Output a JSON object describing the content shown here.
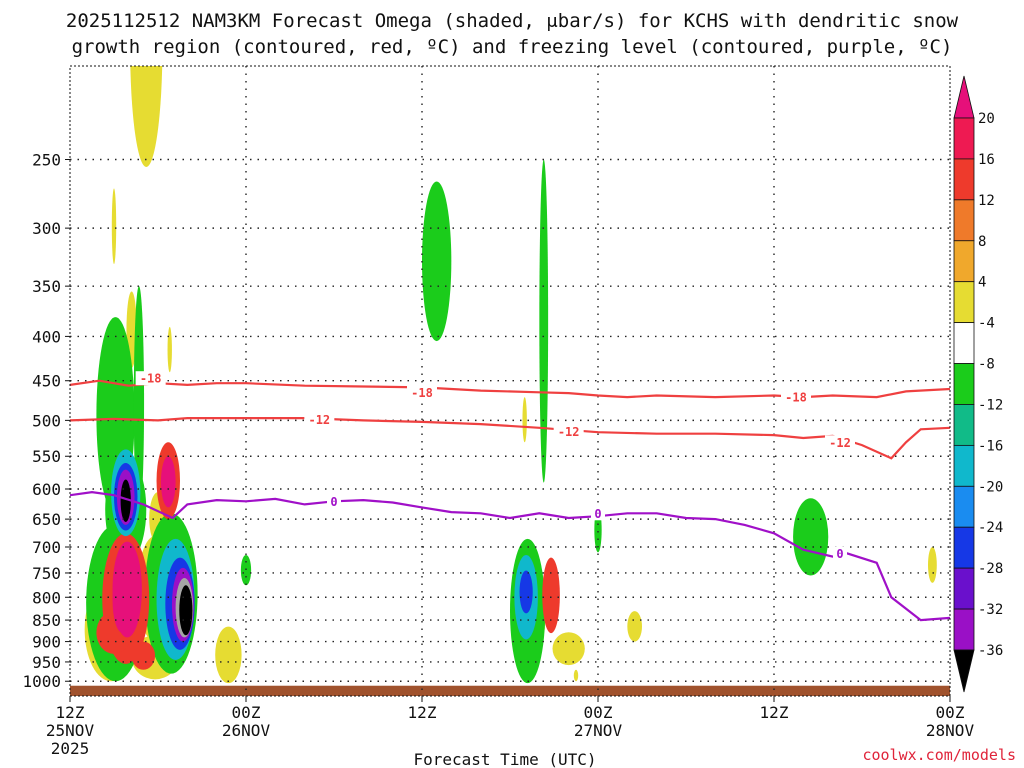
{
  "title_line1": "2025112512 NAM3KM Forecast Omega (shaded, μbar/s) for KCHS with dendritic snow",
  "title_line2": "growth region (contoured, red, ºC) and freezing level (contoured, purple, ºC)",
  "x_axis_title": "Forecast Time (UTC)",
  "credit": "coolwx.com/models",
  "chart_data": {
    "type": "heatmap",
    "xlabel": "Forecast Time (UTC)",
    "ylabel": "",
    "x_range_hours": [
      0,
      60
    ],
    "y_range_hPa": [
      1040,
      195
    ],
    "y_scale": "log-pressure",
    "grid": true,
    "y_ticks": [
      250,
      300,
      350,
      400,
      450,
      500,
      550,
      600,
      650,
      700,
      750,
      800,
      850,
      900,
      950,
      1000
    ],
    "x_ticks": [
      {
        "hour": 0,
        "lines": [
          "12Z",
          "25NOV",
          "2025"
        ]
      },
      {
        "hour": 12,
        "lines": [
          "00Z",
          "26NOV"
        ]
      },
      {
        "hour": 24,
        "lines": [
          "12Z"
        ]
      },
      {
        "hour": 36,
        "lines": [
          "00Z",
          "27NOV"
        ]
      },
      {
        "hour": 48,
        "lines": [
          "12Z"
        ]
      },
      {
        "hour": 60,
        "lines": [
          "00Z",
          "28NOV"
        ]
      }
    ],
    "colorbar": {
      "labels": [
        20,
        16,
        12,
        8,
        4,
        -4,
        -8,
        -12,
        -16,
        -20,
        -24,
        -28,
        -32,
        -36
      ],
      "colors": [
        "#ee1a52",
        "#ee3a2c",
        "#ef7a2a",
        "#f0a82c",
        "#e6dc32",
        "#ffffff",
        "#1bcc1b",
        "#11bb88",
        "#10b8cc",
        "#1a8cf0",
        "#1638e6",
        "#6a10cc",
        "#9a10c6",
        "#a6a6a6"
      ],
      "top_color": "#e6107a",
      "bottom_color": "#000000"
    },
    "contours": [
      {
        "name": "-18",
        "color": "#ef4040",
        "points": [
          [
            0,
            455
          ],
          [
            2,
            450
          ],
          [
            4,
            456
          ],
          [
            6,
            453
          ],
          [
            8,
            455
          ],
          [
            10,
            453
          ],
          [
            12,
            453
          ],
          [
            16,
            456
          ],
          [
            20,
            457
          ],
          [
            24,
            458
          ],
          [
            28,
            462
          ],
          [
            32,
            464
          ],
          [
            34,
            465
          ],
          [
            36,
            468
          ],
          [
            38,
            470
          ],
          [
            40,
            468
          ],
          [
            44,
            470
          ],
          [
            48,
            468
          ],
          [
            50,
            470
          ],
          [
            52,
            468
          ],
          [
            55,
            470
          ],
          [
            57,
            463
          ],
          [
            60,
            460
          ]
        ],
        "labels": [
          [
            5.5,
            447
          ],
          [
            24,
            464
          ],
          [
            49.5,
            470
          ]
        ]
      },
      {
        "name": "-12",
        "color": "#ef4040",
        "points": [
          [
            0,
            500
          ],
          [
            3,
            498
          ],
          [
            6,
            500
          ],
          [
            8,
            497
          ],
          [
            12,
            497
          ],
          [
            16,
            497
          ],
          [
            20,
            500
          ],
          [
            24,
            502
          ],
          [
            28,
            505
          ],
          [
            32,
            510
          ],
          [
            36,
            516
          ],
          [
            40,
            518
          ],
          [
            44,
            518
          ],
          [
            48,
            520
          ],
          [
            50,
            524
          ],
          [
            52,
            521
          ],
          [
            54,
            534
          ],
          [
            56,
            553
          ],
          [
            57,
            530
          ],
          [
            58,
            512
          ],
          [
            60,
            510
          ]
        ],
        "labels": [
          [
            17,
            499
          ],
          [
            34,
            515
          ],
          [
            52.5,
            530
          ]
        ]
      },
      {
        "name": "0",
        "color": "#a010c8",
        "points": [
          [
            0,
            610
          ],
          [
            1.5,
            605
          ],
          [
            3,
            610
          ],
          [
            5,
            625
          ],
          [
            7,
            648
          ],
          [
            8,
            625
          ],
          [
            10,
            618
          ],
          [
            12,
            620
          ],
          [
            14,
            616
          ],
          [
            16,
            625
          ],
          [
            18,
            620
          ],
          [
            20,
            618
          ],
          [
            22,
            622
          ],
          [
            24,
            630
          ],
          [
            26,
            638
          ],
          [
            28,
            640
          ],
          [
            30,
            648
          ],
          [
            32,
            640
          ],
          [
            34,
            648
          ],
          [
            36,
            645
          ],
          [
            38,
            640
          ],
          [
            40,
            640
          ],
          [
            42,
            648
          ],
          [
            44,
            650
          ],
          [
            46,
            660
          ],
          [
            48,
            675
          ],
          [
            50,
            705
          ],
          [
            52,
            718
          ],
          [
            53,
            712
          ],
          [
            55,
            730
          ],
          [
            56,
            800
          ],
          [
            58,
            850
          ],
          [
            60,
            845
          ]
        ],
        "labels": [
          [
            18,
            620
          ],
          [
            36,
            640
          ],
          [
            52.5,
            712
          ]
        ]
      }
    ],
    "regions": [
      {
        "v": 6,
        "c": [
          5.2,
          195
        ],
        "r": [
          1.1,
          60
        ]
      },
      {
        "v": 6,
        "c": [
          4.2,
          395
        ],
        "r": [
          0.35,
          40
        ]
      },
      {
        "v": 6,
        "c": [
          3.0,
          300
        ],
        "r": [
          0.15,
          30
        ]
      },
      {
        "v": 6,
        "c": [
          6.8,
          415
        ],
        "r": [
          0.15,
          25
        ]
      },
      {
        "v": 6,
        "c": [
          6.0,
          650
        ],
        "r": [
          0.6,
          45
        ]
      },
      {
        "v": 6,
        "c": [
          5.8,
          790
        ],
        "r": [
          1.2,
          110
        ]
      },
      {
        "v": 6,
        "c": [
          2.8,
          880
        ],
        "r": [
          1.8,
          120
        ]
      },
      {
        "v": 6,
        "c": [
          5.8,
          940
        ],
        "r": [
          1.6,
          55
        ]
      },
      {
        "v": 6,
        "c": [
          5.0,
          745
        ],
        "r": [
          0.2,
          30
        ]
      },
      {
        "v": 6,
        "c": [
          10.8,
          935
        ],
        "r": [
          0.9,
          70
        ]
      },
      {
        "v": 6,
        "c": [
          31.5,
          860
        ],
        "r": [
          0.9,
          50
        ]
      },
      {
        "v": 6,
        "c": [
          34.0,
          918
        ],
        "r": [
          1.1,
          40
        ]
      },
      {
        "v": 6,
        "c": [
          38.5,
          865
        ],
        "r": [
          0.5,
          35
        ]
      },
      {
        "v": 6,
        "c": [
          58.8,
          735
        ],
        "r": [
          0.3,
          35
        ]
      },
      {
        "v": 6,
        "c": [
          31.0,
          500
        ],
        "r": [
          0.15,
          30
        ]
      },
      {
        "v": 6,
        "c": [
          34.5,
          985
        ],
        "r": [
          0.15,
          15
        ]
      },
      {
        "v": -6,
        "c": [
          25.0,
          335
        ],
        "r": [
          1.0,
          70
        ]
      },
      {
        "v": -6,
        "c": [
          32.3,
          420
        ],
        "r": [
          0.3,
          170
        ]
      },
      {
        "v": -6,
        "c": [
          3.1,
          510
        ],
        "r": [
          1.3,
          130
        ]
      },
      {
        "v": -6,
        "c": [
          4.7,
          500
        ],
        "r": [
          0.35,
          150
        ]
      },
      {
        "v": -6,
        "c": [
          3.8,
          640
        ],
        "r": [
          1.4,
          90
        ]
      },
      {
        "v": -6,
        "c": [
          3.1,
          830
        ],
        "r": [
          2.0,
          170
        ]
      },
      {
        "v": -6,
        "c": [
          6.9,
          810
        ],
        "r": [
          1.8,
          170
        ]
      },
      {
        "v": -6,
        "c": [
          12.0,
          745
        ],
        "r": [
          0.35,
          30
        ]
      },
      {
        "v": -6,
        "c": [
          31.2,
          845
        ],
        "r": [
          1.2,
          160
        ]
      },
      {
        "v": -6,
        "c": [
          36.0,
          670
        ],
        "r": [
          0.25,
          40
        ]
      },
      {
        "v": -6,
        "c": [
          50.5,
          685
        ],
        "r": [
          1.2,
          70
        ]
      },
      {
        "v": 14,
        "c": [
          3.8,
          815
        ],
        "r": [
          1.6,
          140
        ]
      },
      {
        "v": 14,
        "c": [
          3.0,
          880
        ],
        "r": [
          1.2,
          50
        ]
      },
      {
        "v": 14,
        "c": [
          5.0,
          935
        ],
        "r": [
          0.8,
          35
        ]
      },
      {
        "v": 14,
        "c": [
          6.7,
          590
        ],
        "r": [
          0.8,
          60
        ]
      },
      {
        "v": 14,
        "c": [
          32.8,
          800
        ],
        "r": [
          0.6,
          80
        ]
      },
      {
        "v": 22,
        "c": [
          3.9,
          790
        ],
        "r": [
          1.0,
          100
        ]
      },
      {
        "v": 22,
        "c": [
          6.7,
          590
        ],
        "r": [
          0.5,
          40
        ]
      },
      {
        "v": 22,
        "c": [
          3.6,
          810
        ],
        "r": [
          0.7,
          70
        ]
      },
      {
        "v": -14,
        "c": [
          3.8,
          610
        ],
        "r": [
          1.0,
          70
        ]
      },
      {
        "v": -14,
        "c": [
          7.2,
          815
        ],
        "r": [
          1.3,
          130
        ]
      },
      {
        "v": -14,
        "c": [
          31.1,
          805
        ],
        "r": [
          0.8,
          90
        ]
      },
      {
        "v": -22,
        "c": [
          3.8,
          615
        ],
        "r": [
          0.8,
          55
        ]
      },
      {
        "v": -22,
        "c": [
          7.5,
          820
        ],
        "r": [
          1.0,
          100
        ]
      },
      {
        "v": -22,
        "c": [
          31.1,
          790
        ],
        "r": [
          0.45,
          45
        ]
      },
      {
        "v": -30,
        "c": [
          3.8,
          615
        ],
        "r": [
          0.6,
          45
        ]
      },
      {
        "v": -30,
        "c": [
          7.7,
          820
        ],
        "r": [
          0.75,
          80
        ]
      },
      {
        "v": -34,
        "c": [
          7.8,
          825
        ],
        "r": [
          0.6,
          65
        ]
      },
      {
        "v": -38,
        "c": [
          3.8,
          620
        ],
        "r": [
          0.35,
          35
        ]
      },
      {
        "v": -38,
        "c": [
          7.9,
          830
        ],
        "r": [
          0.45,
          55
        ]
      }
    ],
    "terrain_color": "#a0522d"
  }
}
